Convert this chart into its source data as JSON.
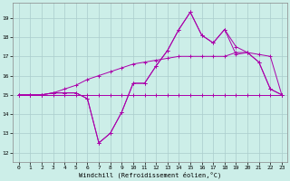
{
  "xlabel": "Windchill (Refroidissement éolien,°C)",
  "xlim": [
    -0.5,
    23.5
  ],
  "ylim": [
    11.5,
    19.8
  ],
  "yticks": [
    12,
    13,
    14,
    15,
    16,
    17,
    18,
    19
  ],
  "xticks": [
    0,
    1,
    2,
    3,
    4,
    5,
    6,
    7,
    8,
    9,
    10,
    11,
    12,
    13,
    14,
    15,
    16,
    17,
    18,
    19,
    20,
    21,
    22,
    23
  ],
  "bg_color": "#cceee8",
  "grid_color": "#aacccc",
  "line_color": "#aa00aa",
  "line1": [
    15.0,
    15.0,
    15.0,
    15.1,
    15.1,
    15.1,
    14.8,
    12.5,
    13.0,
    14.1,
    15.6,
    15.6,
    16.5,
    17.3,
    18.4,
    19.3,
    18.1,
    17.7,
    18.4,
    17.1,
    17.2,
    16.7,
    15.3,
    15.0
  ],
  "line2": [
    15.0,
    15.0,
    15.0,
    15.1,
    15.1,
    15.1,
    14.8,
    12.5,
    13.0,
    14.1,
    15.6,
    15.6,
    16.5,
    17.3,
    18.4,
    19.3,
    18.1,
    17.7,
    18.4,
    17.5,
    17.2,
    16.7,
    15.3,
    15.0
  ],
  "line3": [
    15.0,
    15.0,
    15.0,
    15.0,
    15.0,
    15.0,
    15.0,
    15.0,
    15.0,
    15.0,
    15.0,
    15.0,
    15.0,
    15.0,
    15.0,
    15.0,
    15.0,
    15.0,
    15.0,
    15.0,
    15.0,
    15.0,
    15.0,
    15.0
  ],
  "line4": [
    15.0,
    15.0,
    15.0,
    15.1,
    15.3,
    15.5,
    15.8,
    16.0,
    16.2,
    16.4,
    16.6,
    16.7,
    16.8,
    16.9,
    17.0,
    17.0,
    17.0,
    17.0,
    17.0,
    17.2,
    17.2,
    17.1,
    17.0,
    15.0
  ]
}
